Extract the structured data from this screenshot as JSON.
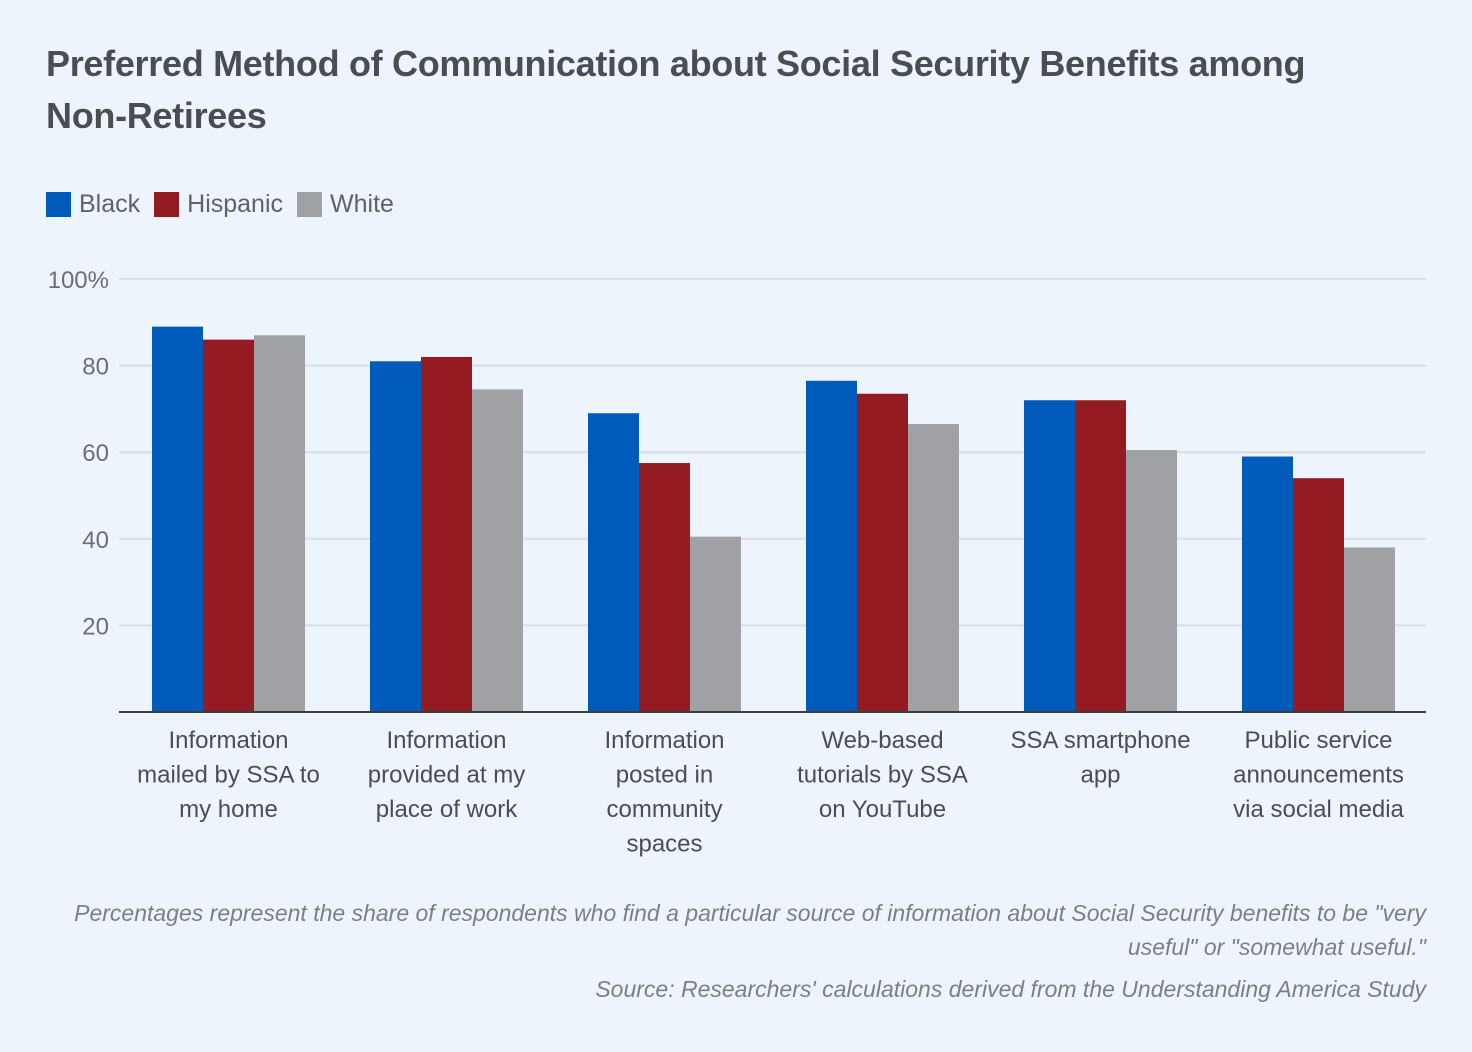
{
  "chart_data": {
    "type": "bar",
    "title": "Preferred Method of Communication about Social Security Benefits among Non-Retirees",
    "xlabel": "",
    "ylabel": "",
    "ylim": [
      0,
      100
    ],
    "yticks": [
      20,
      40,
      60,
      80,
      100
    ],
    "ytick_labels": [
      "20",
      "40",
      "60",
      "80",
      "100%"
    ],
    "grid": true,
    "legend_position": "top-left",
    "categories": [
      [
        "Information",
        "mailed by SSA to",
        "my home"
      ],
      [
        "Information",
        "provided at my",
        "place of work"
      ],
      [
        "Information",
        "posted in",
        "community",
        "spaces"
      ],
      [
        "Web-based",
        "tutorials by SSA",
        "on YouTube"
      ],
      [
        "SSA smartphone",
        "app"
      ],
      [
        "Public service",
        "announcements",
        "via social media"
      ]
    ],
    "series": [
      {
        "name": "Black",
        "color": "#005bbb",
        "values": [
          89,
          81,
          69,
          76.5,
          72,
          59
        ]
      },
      {
        "name": "Hispanic",
        "color": "#951b22",
        "values": [
          86,
          82,
          57.5,
          73.5,
          72,
          54
        ]
      },
      {
        "name": "White",
        "color": "#a0a1a5",
        "values": [
          87,
          74.5,
          40.5,
          66.5,
          60.5,
          38
        ]
      }
    ],
    "note": "Percentages represent the share of respondents who find a particular source of information about Social Security benefits to be \"very useful\" or \"somewhat useful.\"",
    "source": "Source: Researchers' calculations derived from the Understanding America Study"
  }
}
